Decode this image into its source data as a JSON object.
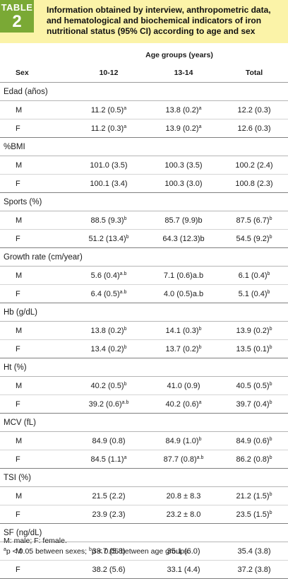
{
  "badge": {
    "word": "TABLE",
    "number": "2"
  },
  "title": "Information obtained by interview, anthropometric data, and hematological and biochemical indicators of iron nutritional status (95% CI) according to age and sex",
  "table": {
    "group_header": "Age groups (years)",
    "col_sex": "Sex",
    "col_10_12": "10-12",
    "col_13_14": "13-14",
    "col_total": "Total",
    "sections": [
      {
        "name": "Edad (años)",
        "rows": [
          {
            "sex": "M",
            "a": "11.2 (0.5)",
            "a_sup": "a",
            "b": "13.8 (0.2)",
            "b_sup": "a",
            "t": "12.2 (0.3)",
            "t_sup": ""
          },
          {
            "sex": "F",
            "a": "11.2 (0.3)",
            "a_sup": "a",
            "b": "13.9 (0.2)",
            "b_sup": "a",
            "t": "12.6 (0.3)",
            "t_sup": ""
          }
        ]
      },
      {
        "name": "%BMI",
        "rows": [
          {
            "sex": "M",
            "a": "101.0 (3.5)",
            "a_sup": "",
            "b": "100.3 (3.5)",
            "b_sup": "",
            "t": "100.2 (2.4)",
            "t_sup": ""
          },
          {
            "sex": "F",
            "a": "100.1 (3.4)",
            "a_sup": "",
            "b": "100.3 (3.0)",
            "b_sup": "",
            "t": "100.8 (2.3)",
            "t_sup": ""
          }
        ]
      },
      {
        "name": "Sports (%)",
        "rows": [
          {
            "sex": "M",
            "a": "88.5 (9.3)",
            "a_sup": "b",
            "b": "85.7 (9.9)b",
            "b_sup": "",
            "t": "87.5 (6.7)",
            "t_sup": "b"
          },
          {
            "sex": "F",
            "a": "51.2 (13.4)",
            "a_sup": "b",
            "b": "64.3 (12.3)b",
            "b_sup": "",
            "t": "54.5 (9.2)",
            "t_sup": "b"
          }
        ]
      },
      {
        "name": "Growth rate (cm/year)",
        "rows": [
          {
            "sex": "M",
            "a": "5.6 (0.4)",
            "a_sup": "a.b",
            "b": "7.1 (0.6)a.b",
            "b_sup": "",
            "t": "6.1 (0.4)",
            "t_sup": "b"
          },
          {
            "sex": "F",
            "a": "6.4 (0.5)",
            "a_sup": "a.b",
            "b": "4.0 (0.5)a.b",
            "b_sup": "",
            "t": "5.1 (0.4)",
            "t_sup": "b"
          }
        ]
      },
      {
        "name": "Hb (g/dL)",
        "rows": [
          {
            "sex": "M",
            "a": "13.8 (0.2)",
            "a_sup": "b",
            "b": "14.1 (0.3)",
            "b_sup": "b",
            "t": "13.9 (0.2)",
            "t_sup": "b"
          },
          {
            "sex": "F",
            "a": "13.4 (0.2)",
            "a_sup": "b",
            "b": "13.7 (0.2)",
            "b_sup": "b",
            "t": "13.5 (0.1)",
            "t_sup": "b"
          }
        ]
      },
      {
        "name": "Ht (%)",
        "rows": [
          {
            "sex": "M",
            "a": "40.2 (0.5)",
            "a_sup": "b",
            "b": "41.0 (0.9)",
            "b_sup": "",
            "t": "40.5 (0.5)",
            "t_sup": "b"
          },
          {
            "sex": "F",
            "a": "39.2 (0.6)",
            "a_sup": "a.b",
            "b": "40.2 (0.6)",
            "b_sup": "a",
            "t": "39.7 (0.4)",
            "t_sup": "b"
          }
        ]
      },
      {
        "name": "MCV (fL)",
        "rows": [
          {
            "sex": "M",
            "a": "84.9 (0.8)",
            "a_sup": "",
            "b": "84.9 (1.0)",
            "b_sup": "b",
            "t": "84.9 (0.6)",
            "t_sup": "b"
          },
          {
            "sex": "F",
            "a": "84.5 (1.1)",
            "a_sup": "a",
            "b": "87.7 (0.8)",
            "b_sup": "a.b",
            "t": "86.2 (0.8)",
            "t_sup": "b"
          }
        ]
      },
      {
        "name": "TSI (%)",
        "rows": [
          {
            "sex": "M",
            "a": "21.5 (2.2)",
            "a_sup": "",
            "b": "20.8 ± 8.3",
            "b_sup": "",
            "t": "21.2 (1.5)",
            "t_sup": "b"
          },
          {
            "sex": "F",
            "a": "23.9 (2.3)",
            "a_sup": "",
            "b": "23.2 ± 8.0",
            "b_sup": "",
            "t": "23.5 (1.5)",
            "t_sup": "b"
          }
        ]
      },
      {
        "name": "SF (ng/dL)",
        "rows": [
          {
            "sex": "M",
            "a": "38.7 (5.8)",
            "a_sup": "",
            "b": "35.1 (6.0)",
            "b_sup": "",
            "t": "35.4 (3.8)",
            "t_sup": ""
          },
          {
            "sex": "F",
            "a": "38.2 (5.6)",
            "a_sup": "",
            "b": "33.1 (4.4)",
            "b_sup": "",
            "t": "37.2 (3.8)",
            "t_sup": ""
          }
        ]
      }
    ]
  },
  "footer": {
    "line1": "M: male; F: female.",
    "note_a_sup": "a",
    "note_a": "p < 0.05 between sexes; ",
    "note_b_sup": "b",
    "note_b": "p < 0.05 between age groups."
  }
}
